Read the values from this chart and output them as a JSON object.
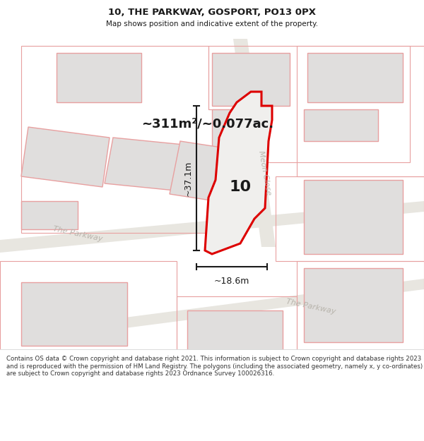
{
  "title": "10, THE PARKWAY, GOSPORT, PO13 0PX",
  "subtitle": "Map shows position and indicative extent of the property.",
  "area_label": "~311m²/~0.077ac.",
  "dim_vertical": "~37.1m",
  "dim_horizontal": "~18.6m",
  "property_number": "10",
  "footer": "Contains OS data © Crown copyright and database right 2021. This information is subject to Crown copyright and database rights 2023 and is reproduced with the permission of HM Land Registry. The polygons (including the associated geometry, namely x, y co-ordinates) are subject to Crown copyright and database rights 2023 Ordnance Survey 100026316.",
  "map_bg": "#f7f6f4",
  "road_fill": "#e8e6e0",
  "building_fill": "#e0dedd",
  "building_edge": "#e8a0a0",
  "parcel_edge": "#e8a0a0",
  "highlight_fill": "#f0efed",
  "highlight_edge": "#dd0000",
  "dim_color": "#1a1a1a",
  "text_color": "#1a1a1a",
  "road_text_color": "#b8b4ac"
}
